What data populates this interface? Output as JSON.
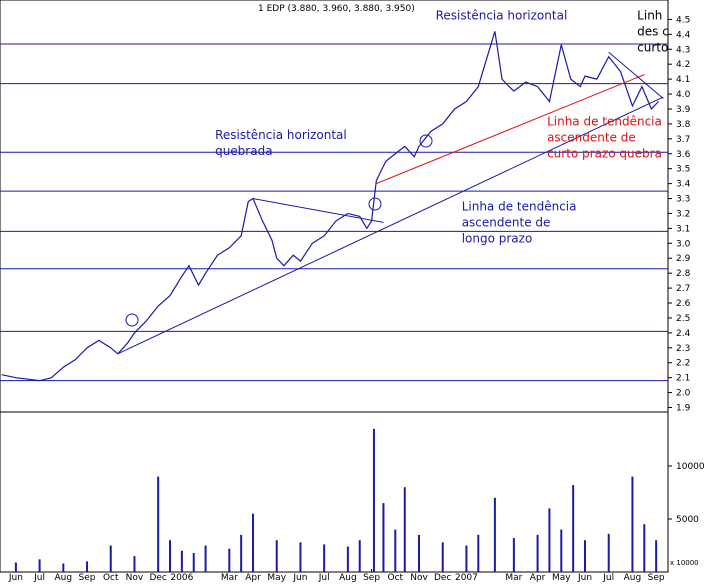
{
  "chart_data": {
    "type": "line",
    "title": "1 EDP (3.880, 3.960, 3.880, 3.950)",
    "color": "#1a1aa6",
    "x": [
      -0.6,
      0,
      1,
      1.5,
      2,
      2.5,
      3,
      3.5,
      4,
      4.3,
      4.7,
      5,
      5.5,
      6,
      6.5,
      7,
      7.3,
      7.7,
      8,
      8.5,
      9,
      9.5,
      9.8,
      10,
      10.4,
      10.8,
      11,
      11.3,
      11.7,
      12,
      12.5,
      13,
      13.5,
      14,
      14.5,
      14.8,
      15,
      15.2,
      15.6,
      16,
      16.4,
      16.8,
      17,
      17.5,
      18,
      18.5,
      19,
      19.5,
      20.2,
      20.5,
      20.8,
      21,
      21.5,
      22,
      22.5,
      23,
      23.4,
      23.8,
      24,
      24.5,
      25,
      25.5,
      26,
      26.4,
      26.8,
      27.1
    ],
    "values": [
      2.12,
      2.1,
      2.08,
      2.1,
      2.17,
      2.22,
      2.3,
      2.35,
      2.3,
      2.26,
      2.33,
      2.4,
      2.48,
      2.58,
      2.65,
      2.78,
      2.85,
      2.72,
      2.8,
      2.92,
      2.97,
      3.05,
      3.28,
      3.3,
      3.15,
      3.02,
      2.9,
      2.85,
      2.92,
      2.88,
      3.0,
      3.05,
      3.15,
      3.2,
      3.18,
      3.1,
      3.15,
      3.42,
      3.55,
      3.6,
      3.65,
      3.58,
      3.65,
      3.75,
      3.8,
      3.9,
      3.95,
      4.05,
      4.42,
      4.1,
      4.05,
      4.02,
      4.08,
      4.05,
      3.95,
      4.33,
      4.1,
      4.05,
      4.12,
      4.1,
      4.25,
      4.15,
      3.92,
      4.05,
      3.9,
      3.95
    ],
    "xlim": [
      -0.67,
      27.5
    ],
    "xticks": [
      {
        "value": 0,
        "label": "Jun"
      },
      {
        "value": 1,
        "label": "Jul"
      },
      {
        "value": 2,
        "label": "Aug"
      },
      {
        "value": 3,
        "label": "Sep"
      },
      {
        "value": 4,
        "label": "Oct"
      },
      {
        "value": 5,
        "label": "Nov"
      },
      {
        "value": 6,
        "label": "Dec"
      },
      {
        "value": 7,
        "label": "2006"
      },
      {
        "value": 9,
        "label": "Mar"
      },
      {
        "value": 10,
        "label": "Apr"
      },
      {
        "value": 11,
        "label": "May"
      },
      {
        "value": 12,
        "label": "Jun"
      },
      {
        "value": 13,
        "label": "Jul"
      },
      {
        "value": 14,
        "label": "Aug"
      },
      {
        "value": 15,
        "label": "Sep"
      },
      {
        "value": 16,
        "label": "Oct"
      },
      {
        "value": 17,
        "label": "Nov"
      },
      {
        "value": 18,
        "label": "Dec"
      },
      {
        "value": 19,
        "label": "2007"
      },
      {
        "value": 21,
        "label": "Mar"
      },
      {
        "value": 22,
        "label": "Apr"
      },
      {
        "value": 23,
        "label": "May"
      },
      {
        "value": 24,
        "label": "Jun"
      },
      {
        "value": 25,
        "label": "Jul"
      },
      {
        "value": 26,
        "label": "Aug"
      },
      {
        "value": 27,
        "label": "Sep"
      }
    ],
    "ylim": [
      1.87,
      4.63
    ],
    "yticks": [
      1.9,
      {
        "value": 2,
        "label": "2.0"
      },
      2.1,
      2.2,
      2.3,
      2.4,
      2.5,
      2.6,
      2.7,
      2.8,
      2.9,
      {
        "value": 3,
        "label": "3.0"
      },
      3.1,
      3.2,
      3.3,
      3.4,
      3.5,
      3.6,
      3.7,
      3.8,
      3.9,
      {
        "value": 4,
        "label": "4.0"
      },
      4.1,
      4.2,
      4.3,
      4.4,
      4.5
    ],
    "levels": [
      4.335,
      4.07,
      3.61,
      3.35,
      3.08,
      2.83,
      2.41,
      2.08
    ],
    "trendlines": [
      {
        "color": "#1a1aa6",
        "x": [
          4.3,
          27.3
        ],
        "values": [
          2.26,
          3.98
        ]
      },
      {
        "color": "#e01010",
        "x": [
          15.2,
          26.5
        ],
        "values": [
          3.4,
          4.13
        ]
      },
      {
        "color": "#1a1aa6",
        "x": [
          10,
          15.5
        ],
        "values": [
          3.3,
          3.14
        ]
      },
      {
        "color": "#1a1aa6",
        "x": [
          25,
          27.3
        ],
        "values": [
          4.28,
          3.97
        ]
      }
    ],
    "annotations": [
      {
        "color": "#1a1aa6",
        "x": 8.4,
        "y": 3.7,
        "lines": [
          "Resistência horizontal",
          "quebrada"
        ]
      },
      {
        "color": "#1a1aa6",
        "x": 17.7,
        "y": 4.5,
        "lines": [
          "Resistência horizontal"
        ]
      },
      {
        "color": "#1a1aa6",
        "x": 18.8,
        "y": 3.22,
        "lines": [
          "Linha de tendência",
          "ascendente de",
          "longo prazo"
        ]
      },
      {
        "color": "#e01010",
        "x": 22.4,
        "y": 3.79,
        "lines": [
          "Linha de tendência",
          "ascendente de",
          "curto prazo quebra"
        ]
      },
      {
        "color": "#000000",
        "x": 26.2,
        "y": 4.5,
        "lines": [
          "Linh",
          "des c",
          "curto"
        ]
      }
    ],
    "volume": {
      "color": "#1a1aa6",
      "unit_label": "x 10000",
      "x": [
        0,
        1,
        2,
        3,
        4,
        5,
        6,
        6.5,
        7,
        7.5,
        8,
        9,
        9.5,
        10,
        11,
        12,
        13,
        14,
        14.5,
        15.1,
        15.5,
        16,
        16.4,
        17,
        18,
        19,
        19.5,
        20.2,
        21,
        22,
        22.5,
        23,
        23.5,
        24,
        25,
        26,
        26.5,
        27
      ],
      "values": [
        900,
        1200,
        800,
        1000,
        2500,
        1500,
        9000,
        3000,
        2000,
        1800,
        2500,
        2200,
        3500,
        5500,
        3000,
        2800,
        2600,
        2400,
        3000,
        13500,
        6500,
        4000,
        8000,
        3500,
        2800,
        2500,
        3500,
        7000,
        3200,
        3500,
        6000,
        4000,
        8200,
        3000,
        3600,
        9000,
        4500,
        3000
      ],
      "ylim": [
        0,
        15000
      ],
      "yticks": [
        5000,
        10000
      ]
    }
  }
}
